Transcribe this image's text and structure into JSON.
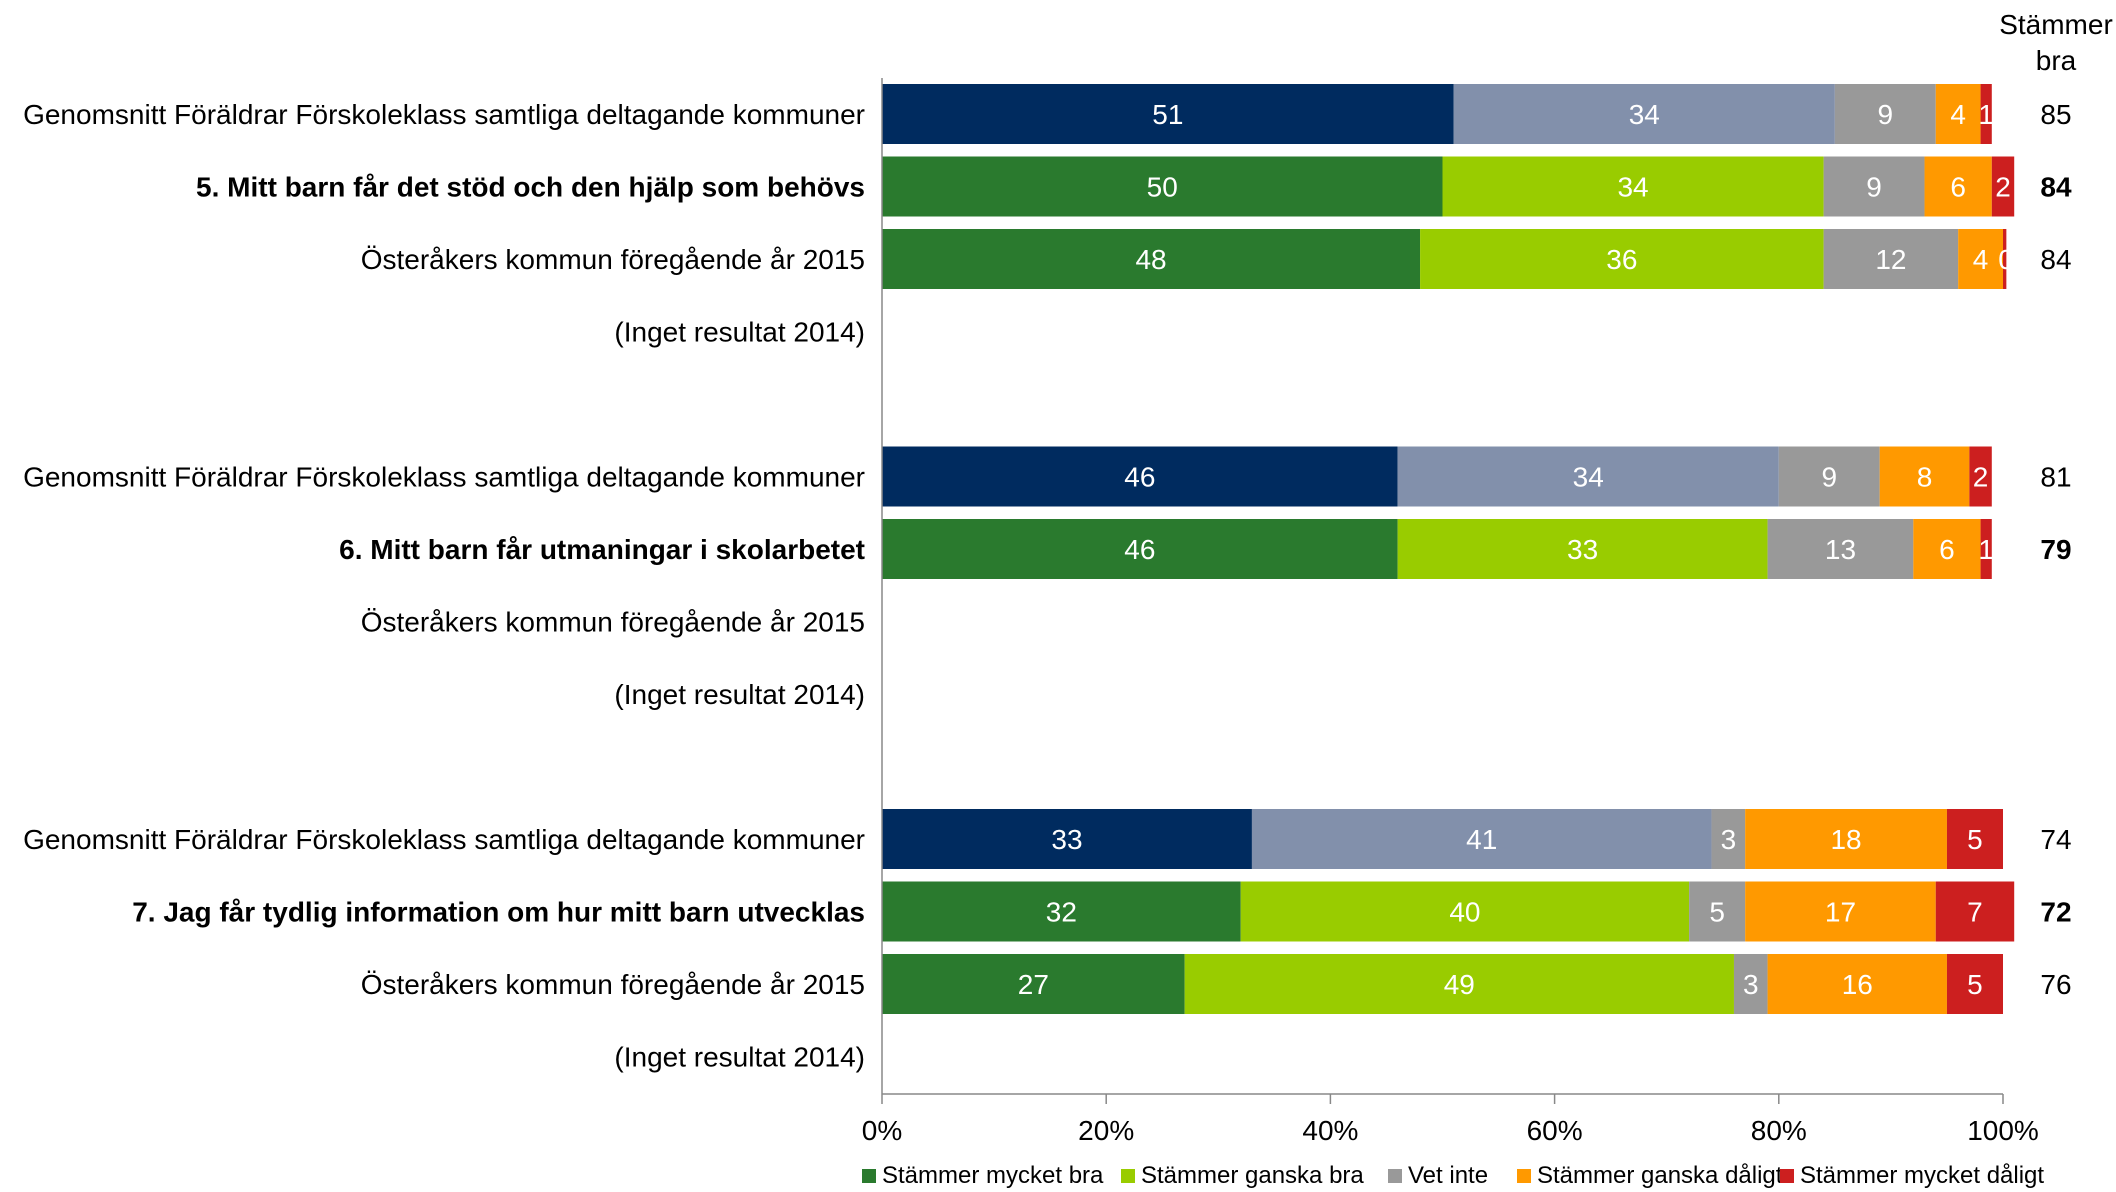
{
  "chart_data": {
    "type": "bar",
    "orientation": "horizontal",
    "stacked": true,
    "xlim": [
      0,
      100
    ],
    "x_ticks": [
      "0%",
      "20%",
      "40%",
      "60%",
      "80%",
      "100%"
    ],
    "sum_header": [
      "Stämmer",
      "bra"
    ],
    "grid": false,
    "legend_position": "bottom",
    "legend": [
      {
        "name": "Stämmer mycket bra",
        "color": "#2a7a2e"
      },
      {
        "name": "Stämmer ganska bra",
        "color": "#99cc00"
      },
      {
        "name": "Vet inte",
        "color": "#999999"
      },
      {
        "name": "Stämmer ganska dåligt",
        "color": "#ff9900"
      },
      {
        "name": "Stämmer mycket dåligt",
        "color": "#cc1f1f"
      }
    ],
    "colors": {
      "avg_primary": "#002b5f",
      "avg_secondary": "#8290ab",
      "gray": "#999999",
      "orange": "#ff9900",
      "red": "#cc1f1f",
      "green_dark": "#2a7a2e",
      "green_light": "#99cc00"
    },
    "rows": [
      {
        "label": "Genomsnitt Föräldrar Förskoleklass samtliga deltagande kommuner",
        "kind": "avg",
        "bold": false,
        "values": [
          51,
          34,
          9,
          4,
          1
        ],
        "value_labels": [
          "51",
          "34",
          "9",
          "4",
          "1"
        ],
        "sum": "85"
      },
      {
        "label": "5. Mitt barn får det stöd och den hjälp som behövs",
        "kind": "main",
        "bold": true,
        "values": [
          50,
          34,
          9,
          6,
          2
        ],
        "value_labels": [
          "50",
          "34",
          "9",
          "6",
          "2"
        ],
        "sum": "84"
      },
      {
        "label": "Österåkers kommun föregående år 2015",
        "kind": "main",
        "bold": false,
        "values": [
          48,
          36,
          12,
          4,
          0.3
        ],
        "value_labels": [
          "48",
          "36",
          "12",
          "4",
          "0"
        ],
        "sum": "84"
      },
      {
        "label": "(Inget resultat 2014)",
        "kind": "none",
        "bold": false,
        "values": [],
        "value_labels": [],
        "sum": ""
      },
      {
        "label": "",
        "kind": "gap",
        "bold": false,
        "values": [],
        "value_labels": [],
        "sum": ""
      },
      {
        "label": "Genomsnitt Föräldrar Förskoleklass samtliga deltagande kommuner",
        "kind": "avg",
        "bold": false,
        "values": [
          46,
          34,
          9,
          8,
          2
        ],
        "value_labels": [
          "46",
          "34",
          "9",
          "8",
          "2"
        ],
        "sum": "81"
      },
      {
        "label": "6. Mitt barn får utmaningar i skolarbetet",
        "kind": "main",
        "bold": true,
        "values": [
          46,
          33,
          13,
          6,
          1
        ],
        "value_labels": [
          "46",
          "33",
          "13",
          "6",
          "1"
        ],
        "sum": "79"
      },
      {
        "label": "Österåkers kommun föregående år 2015",
        "kind": "none",
        "bold": false,
        "values": [],
        "value_labels": [],
        "sum": ""
      },
      {
        "label": "(Inget resultat 2014)",
        "kind": "none",
        "bold": false,
        "values": [],
        "value_labels": [],
        "sum": ""
      },
      {
        "label": "",
        "kind": "gap",
        "bold": false,
        "values": [],
        "value_labels": [],
        "sum": ""
      },
      {
        "label": "Genomsnitt Föräldrar Förskoleklass samtliga deltagande kommuner",
        "kind": "avg",
        "bold": false,
        "values": [
          33,
          41,
          3,
          18,
          5
        ],
        "value_labels": [
          "33",
          "41",
          "3",
          "18",
          "5"
        ],
        "sum": "74"
      },
      {
        "label": "7. Jag får tydlig information om hur mitt barn utvecklas",
        "kind": "main",
        "bold": true,
        "values": [
          32,
          40,
          5,
          17,
          7
        ],
        "value_labels": [
          "32",
          "40",
          "5",
          "17",
          "7"
        ],
        "sum": "72"
      },
      {
        "label": "Österåkers kommun föregående år 2015",
        "kind": "main",
        "bold": false,
        "values": [
          27,
          49,
          3,
          16,
          5
        ],
        "value_labels": [
          "27",
          "49",
          "3",
          "16",
          "5"
        ],
        "sum": "76"
      },
      {
        "label": "(Inget resultat 2014)",
        "kind": "none",
        "bold": false,
        "values": [],
        "value_labels": [],
        "sum": ""
      }
    ]
  }
}
